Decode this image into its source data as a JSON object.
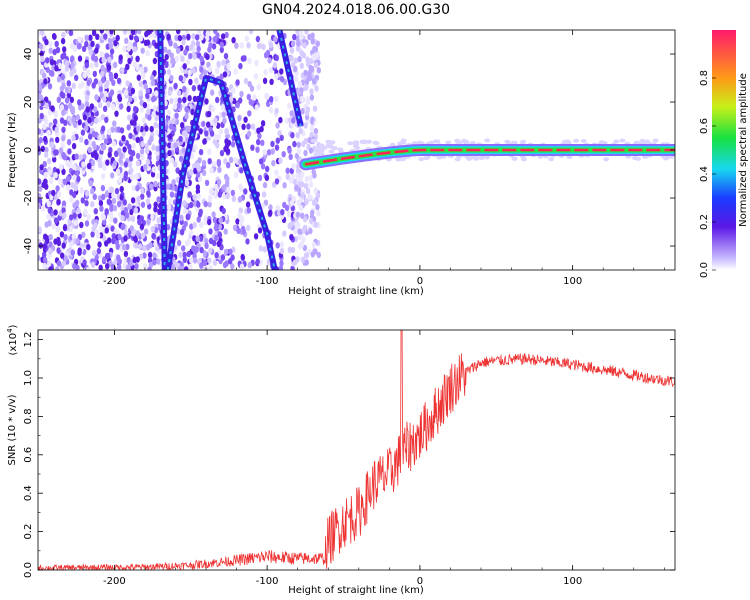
{
  "title": "GN04.2024.018.06.00.G30",
  "colors": {
    "snr_line": "#ee3333",
    "ridge": "#2ab0e8",
    "carrier": "#ff2255",
    "noise": "#6a3df0"
  },
  "chart_data": [
    {
      "type": "heatmap",
      "title": "GN04.2024.018.06.00.G30",
      "xlabel": "Height of straight line (km)",
      "ylabel": "Frequency (Hz)",
      "xlim": [
        -250,
        167
      ],
      "ylim": [
        -50,
        50
      ],
      "xticks": [
        "-200",
        "-100",
        "0",
        "100"
      ],
      "yticks": [
        "-40",
        "-20",
        "0",
        "20",
        "40"
      ],
      "colorbar": {
        "label": "Normalized spectral amplitude",
        "range": [
          0,
          1
        ],
        "ticks": [
          "0.0",
          "0.2",
          "0.4",
          "0.6",
          "0.8"
        ],
        "colormap": "rainbow"
      },
      "features": {
        "noise_region_x": [
          -250,
          -70
        ],
        "carrier_frequency_hz": 0,
        "carrier_start_x": -75,
        "carrier_start_freq_hz": -6,
        "curved_tracks": [
          {
            "points": [
              [
                -170,
                50
              ],
              [
                -167,
                -50
              ]
            ]
          },
          {
            "points": [
              [
                -165,
                -50
              ],
              [
                -155,
                -10
              ],
              [
                -140,
                30
              ],
              [
                -130,
                28
              ],
              [
                -115,
                -5
              ],
              [
                -100,
                -35
              ],
              [
                -95,
                -50
              ]
            ]
          },
          {
            "points": [
              [
                -92,
                50
              ],
              [
                -85,
                30
              ],
              [
                -78,
                10
              ]
            ]
          }
        ]
      }
    },
    {
      "type": "line",
      "xlabel": "Height of straight line (km)",
      "ylabel": "SNR (10 * v/v)",
      "y_multiplier": "(x10",
      "y_multiplier_exp": "4",
      "y_multiplier_close": ")",
      "xlim": [
        -250,
        167
      ],
      "ylim": [
        0,
        1.25
      ],
      "xticks": [
        "-200",
        "-100",
        "0",
        "100"
      ],
      "yticks": [
        "0.0",
        "0.2",
        "0.4",
        "0.6",
        "0.8",
        "1.0",
        "1.2"
      ],
      "series": [
        {
          "color": "#ee3333",
          "profile": [
            [
              -250,
              0.01
            ],
            [
              -180,
              0.015
            ],
            [
              -150,
              0.025
            ],
            [
              -120,
              0.05
            ],
            [
              -100,
              0.07
            ],
            [
              -80,
              0.06
            ],
            [
              -62,
              0.06
            ],
            [
              -60,
              0.15
            ],
            [
              -50,
              0.25
            ],
            [
              -40,
              0.3
            ],
            [
              -30,
              0.45
            ],
            [
              -20,
              0.5
            ],
            [
              -10,
              0.62
            ],
            [
              0,
              0.7
            ],
            [
              10,
              0.82
            ],
            [
              20,
              0.95
            ],
            [
              30,
              1.03
            ],
            [
              40,
              1.08
            ],
            [
              50,
              1.09
            ],
            [
              70,
              1.1
            ],
            [
              100,
              1.07
            ],
            [
              130,
              1.03
            ],
            [
              150,
              1.0
            ],
            [
              167,
              0.98
            ]
          ],
          "spike": {
            "x": -12,
            "y": 1.25
          }
        }
      ]
    }
  ]
}
